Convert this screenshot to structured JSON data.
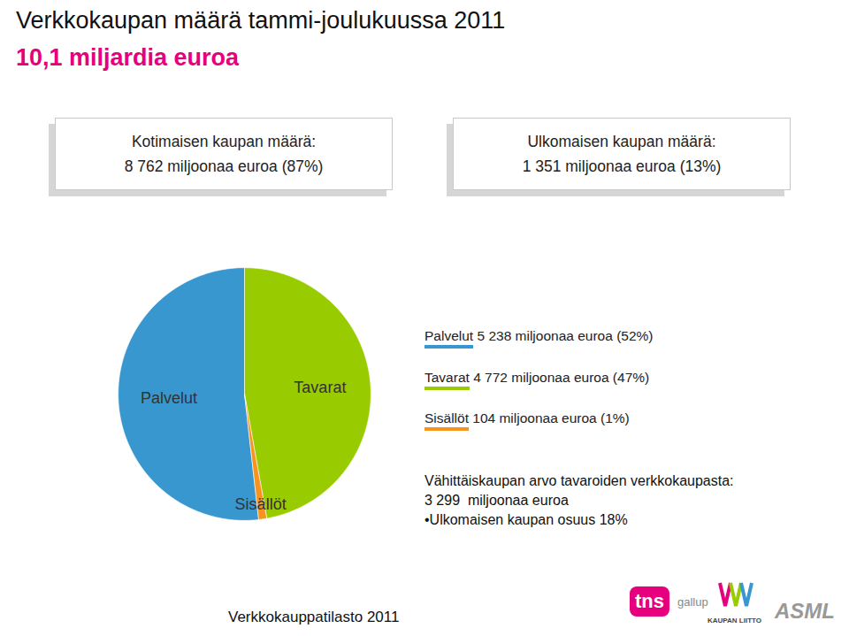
{
  "header": {
    "title": "Verkkokaupan määrä tammi-joulukuussa 2011",
    "subtitle": "10,1 miljardia euroa"
  },
  "boxes": [
    {
      "title": "Kotimaisen kaupan määrä:",
      "text": "8 762 miljoonaa euroa (87%)"
    },
    {
      "title": "Ulkomaisen kaupan määrä:",
      "text": "1 351 miljoonaa euroa (13%)"
    }
  ],
  "chart_data": {
    "type": "pie",
    "categories": [
      "Palvelut",
      "Tavarat",
      "Sisällöt"
    ],
    "values": [
      5238,
      4772,
      104
    ],
    "value_labels": [
      "5 238 miljoonaa euroa (52%)",
      "4 772 miljoonaa euroa (47%)",
      "104  miljoonaa euroa (1%)"
    ],
    "colors": [
      "#3897cf",
      "#99cc00",
      "#f7941d"
    ]
  },
  "notes": [
    "Vähittäiskaupan arvo tavaroiden verkkokaupasta:",
    "3 299  miljoonaa euroa",
    "•Ulkomaisen kaupan osuus 18%"
  ],
  "footer": "Verkkokauppatilasto 2011",
  "logos": [
    "tns",
    "gallup",
    "KAUPAN LIITTO",
    "ASML"
  ]
}
